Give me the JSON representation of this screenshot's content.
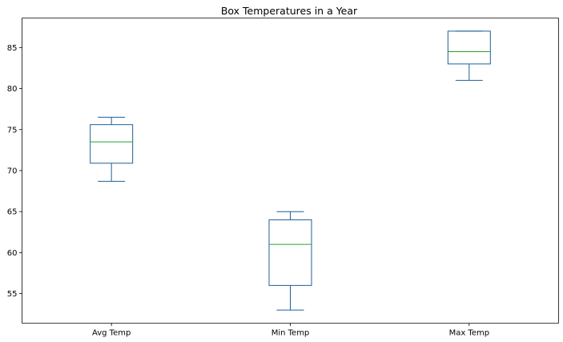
{
  "chart_data": {
    "type": "box",
    "title": "Box Temperatures in a Year",
    "xlabel": "",
    "ylabel": "",
    "categories": [
      "Avg Temp",
      "Min Temp",
      "Max Temp"
    ],
    "boxes": [
      {
        "name": "Avg Temp",
        "whisker_low": 68.7,
        "q1": 70.9,
        "median": 73.5,
        "q3": 75.6,
        "whisker_high": 76.5
      },
      {
        "name": "Min Temp",
        "whisker_low": 53.0,
        "q1": 56.0,
        "median": 61.0,
        "q3": 64.0,
        "whisker_high": 65.0
      },
      {
        "name": "Max Temp",
        "whisker_low": 81.0,
        "q1": 83.0,
        "median": 84.5,
        "q3": 87.0,
        "whisker_high": 87.0
      }
    ],
    "ylim": [
      51.4,
      88.6
    ],
    "yticks": [
      55,
      60,
      65,
      70,
      75,
      80,
      85
    ],
    "grid": false,
    "legend": "none",
    "colors": {
      "box": "#1f5f9a",
      "median": "#2ca02c",
      "axis": "#000000",
      "background": "#ffffff"
    }
  }
}
